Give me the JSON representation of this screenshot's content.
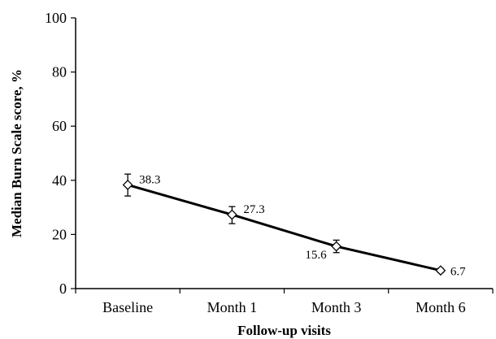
{
  "chart_data": {
    "type": "line",
    "title": "",
    "xlabel": "Follow-up visits",
    "ylabel": "Median Burn Scale score, %",
    "categories": [
      "Baseline",
      "Month 1",
      "Month 3",
      "Month 6"
    ],
    "series": [
      {
        "values": [
          38.3,
          27.3,
          15.6,
          6.7
        ],
        "error_low": [
          34.2,
          24.0,
          13.3,
          6.0
        ],
        "error_high": [
          42.3,
          30.3,
          17.9,
          7.4
        ],
        "data_labels": [
          "38.3",
          "27.3",
          "15.6",
          "6.7"
        ],
        "marker": "diamond-open"
      }
    ],
    "ylim": [
      0,
      100
    ],
    "yticks": [
      0,
      20,
      40,
      60,
      80,
      100
    ],
    "grid": false,
    "legend": "none"
  }
}
